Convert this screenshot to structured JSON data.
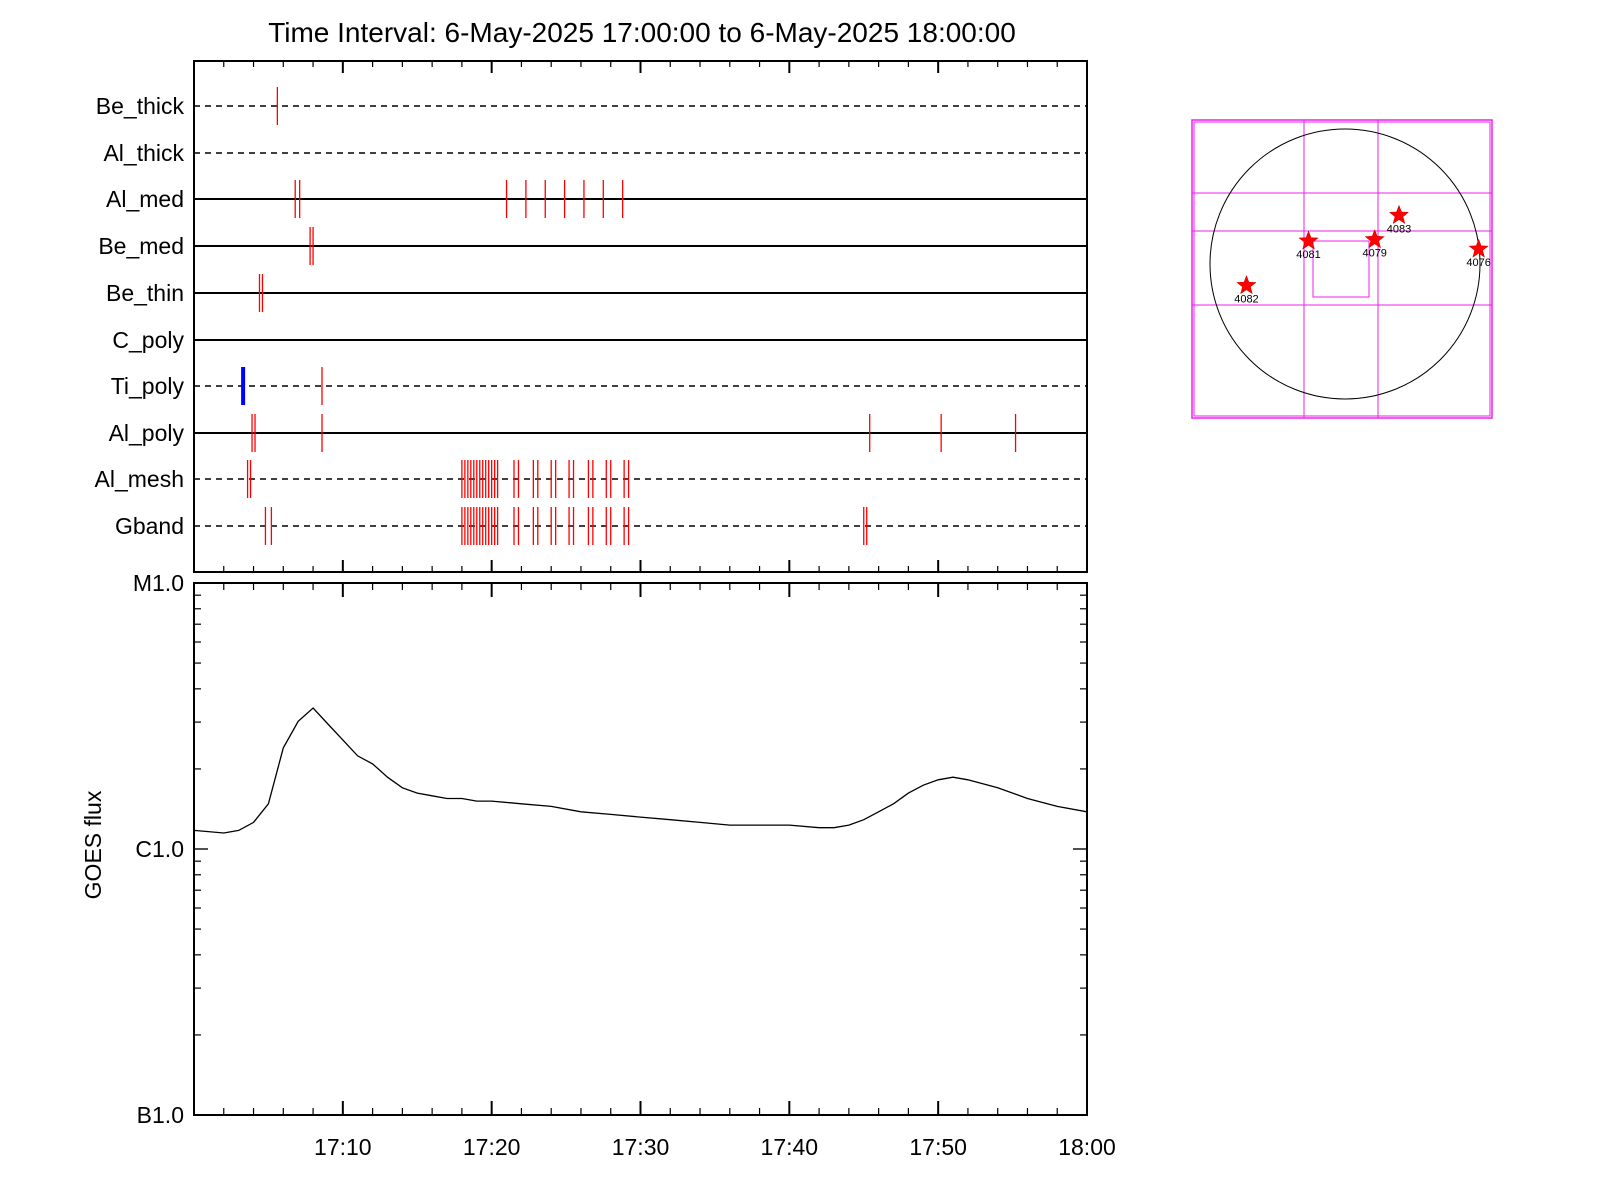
{
  "chart_data": [
    {
      "type": "timeline",
      "title": "Time Interval:  6-May-2025 17:00:00 to  6-May-2025 18:00:00",
      "x_range": [
        "17:00",
        "18:00"
      ],
      "rows": [
        {
          "name": "Be_thick",
          "line": "dashed",
          "events": [
            {
              "t": 5.6
            }
          ]
        },
        {
          "name": "Al_thick",
          "line": "dashed",
          "events": []
        },
        {
          "name": "Al_med",
          "line": "solid",
          "events": [
            {
              "t": 6.8
            },
            {
              "t": 7.1
            },
            {
              "t": 21.0
            },
            {
              "t": 22.3
            },
            {
              "t": 23.6
            },
            {
              "t": 24.9
            },
            {
              "t": 26.2
            },
            {
              "t": 27.5
            },
            {
              "t": 28.8
            }
          ]
        },
        {
          "name": "Be_med",
          "line": "solid",
          "events": [
            {
              "t": 7.8
            },
            {
              "t": 8.0
            }
          ]
        },
        {
          "name": "Be_thin",
          "line": "solid",
          "events": [
            {
              "t": 4.4
            },
            {
              "t": 4.6
            }
          ]
        },
        {
          "name": "C_poly",
          "line": "solid",
          "events": []
        },
        {
          "name": "Ti_poly",
          "line": "dashed",
          "events": [
            {
              "t": 3.3,
              "color": "blue"
            },
            {
              "t": 8.6
            }
          ]
        },
        {
          "name": "Al_poly",
          "line": "solid",
          "events": [
            {
              "t": 3.9
            },
            {
              "t": 4.1
            },
            {
              "t": 8.6
            },
            {
              "t": 45.4
            },
            {
              "t": 50.2
            },
            {
              "t": 55.2
            }
          ]
        },
        {
          "name": "Al_mesh",
          "line": "dashed",
          "events": [
            {
              "t": 3.6
            },
            {
              "t": 3.8
            },
            {
              "t": 18.0
            },
            {
              "t": 18.2
            },
            {
              "t": 18.4
            },
            {
              "t": 18.6
            },
            {
              "t": 18.8
            },
            {
              "t": 19.0
            },
            {
              "t": 19.2
            },
            {
              "t": 19.4
            },
            {
              "t": 19.6
            },
            {
              "t": 19.8
            },
            {
              "t": 20.0
            },
            {
              "t": 20.2
            },
            {
              "t": 20.4
            },
            {
              "t": 21.5
            },
            {
              "t": 21.8
            },
            {
              "t": 22.8
            },
            {
              "t": 23.1
            },
            {
              "t": 24.0
            },
            {
              "t": 24.3
            },
            {
              "t": 25.2
            },
            {
              "t": 25.5
            },
            {
              "t": 26.5
            },
            {
              "t": 26.8
            },
            {
              "t": 27.7
            },
            {
              "t": 28.0
            },
            {
              "t": 28.9
            },
            {
              "t": 29.2
            }
          ]
        },
        {
          "name": "Gband",
          "line": "dashed",
          "events": [
            {
              "t": 4.8
            },
            {
              "t": 5.2
            },
            {
              "t": 18.0
            },
            {
              "t": 18.2
            },
            {
              "t": 18.4
            },
            {
              "t": 18.6
            },
            {
              "t": 18.8
            },
            {
              "t": 19.0
            },
            {
              "t": 19.2
            },
            {
              "t": 19.4
            },
            {
              "t": 19.6
            },
            {
              "t": 19.8
            },
            {
              "t": 20.0
            },
            {
              "t": 20.2
            },
            {
              "t": 20.4
            },
            {
              "t": 21.5
            },
            {
              "t": 21.8
            },
            {
              "t": 22.8
            },
            {
              "t": 23.1
            },
            {
              "t": 24.0
            },
            {
              "t": 24.3
            },
            {
              "t": 25.2
            },
            {
              "t": 25.5
            },
            {
              "t": 26.5
            },
            {
              "t": 26.8
            },
            {
              "t": 27.7
            },
            {
              "t": 28.0
            },
            {
              "t": 28.9
            },
            {
              "t": 29.2
            },
            {
              "t": 45.0
            },
            {
              "t": 45.2
            }
          ]
        }
      ],
      "event_color": "#ff0000",
      "blue_color": "#0000ff"
    },
    {
      "type": "line",
      "xlabel": "",
      "ylabel": "GOES flux",
      "x_ticks": [
        "17:10",
        "17:20",
        "17:30",
        "17:40",
        "17:50",
        "18:00"
      ],
      "y_ticks": [
        "B1.0",
        "C1.0",
        "M1.0"
      ],
      "y_scale": "log",
      "ylim": [
        "B1.0",
        "M1.0"
      ],
      "xlim": [
        "17:00",
        "18:00"
      ],
      "series": [
        {
          "x_minutes": [
            0,
            2,
            3,
            4,
            5,
            6,
            7,
            8,
            9,
            10,
            11,
            12,
            13,
            14,
            15,
            16,
            17,
            18,
            19,
            20,
            22,
            24,
            26,
            28,
            30,
            32,
            34,
            36,
            38,
            40,
            42,
            43,
            44,
            45,
            46,
            47,
            48,
            49,
            50,
            51,
            52,
            54,
            56,
            58,
            60
          ],
          "y_log_flux": [
            -5.93,
            -5.94,
            -5.93,
            -5.9,
            -5.83,
            -5.62,
            -5.52,
            -5.47,
            -5.53,
            -5.59,
            -5.65,
            -5.68,
            -5.73,
            -5.77,
            -5.79,
            -5.8,
            -5.81,
            -5.81,
            -5.82,
            -5.82,
            -5.83,
            -5.84,
            -5.86,
            -5.87,
            -5.88,
            -5.89,
            -5.9,
            -5.91,
            -5.91,
            -5.91,
            -5.92,
            -5.92,
            -5.91,
            -5.89,
            -5.86,
            -5.83,
            -5.79,
            -5.76,
            -5.74,
            -5.73,
            -5.74,
            -5.77,
            -5.81,
            -5.84,
            -5.86
          ]
        }
      ]
    },
    {
      "type": "diagram",
      "labels": [
        "4081",
        "4079",
        "4083",
        "4076",
        "4082"
      ],
      "markers": [
        {
          "label": "4081",
          "lon": -0.27,
          "lat": 0.17
        },
        {
          "label": "4079",
          "lon": 0.22,
          "lat": 0.18
        },
        {
          "label": "4083",
          "lon": 0.4,
          "lat": 0.36
        },
        {
          "label": "4076",
          "lon": 0.99,
          "lat": 0.11
        },
        {
          "label": "4082",
          "lon": -0.73,
          "lat": -0.16
        }
      ]
    }
  ]
}
